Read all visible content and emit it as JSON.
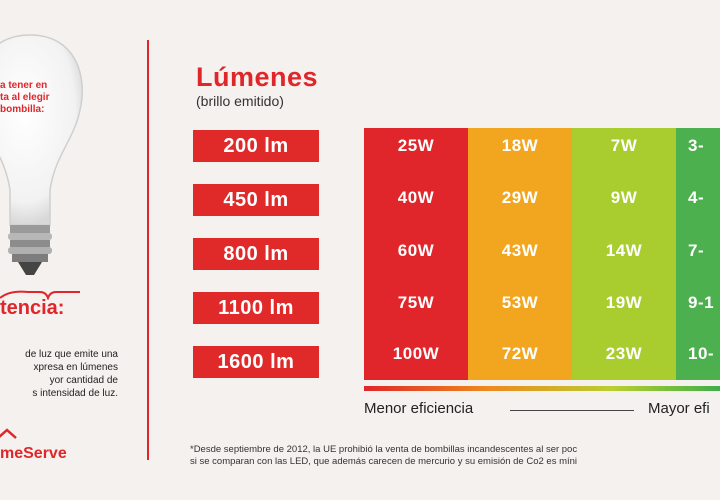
{
  "left": {
    "bulb_text": [
      "a tener en",
      "ta al elegir",
      "bombilla:"
    ],
    "heading": "tencia:",
    "description": [
      "de luz que emite una",
      "xpresa en lúmenes",
      "yor cantidad de",
      "s intensidad de luz."
    ],
    "brand": "meServe"
  },
  "lumens": {
    "title": "Lúmenes",
    "subtitle": "(brillo emitido)",
    "levels": [
      "200 lm",
      "450 lm",
      "800 lm",
      "1100 lm",
      "1600 lm"
    ]
  },
  "table": {
    "columns": [
      {
        "color": "#e0262a",
        "values": [
          "25W",
          "40W",
          "60W",
          "75W",
          "100W"
        ]
      },
      {
        "color": "#f2a61f",
        "values": [
          "18W",
          "29W",
          "43W",
          "53W",
          "72W"
        ]
      },
      {
        "color": "#a9cc2f",
        "values": [
          "7W",
          "9W",
          "14W",
          "19W",
          "23W"
        ]
      },
      {
        "color": "#4cb04f",
        "values": [
          "3-",
          "4-",
          "7-",
          "9-1",
          "10-"
        ]
      }
    ]
  },
  "efficiency": {
    "low_label": "Menor eficiencia",
    "high_label": "Mayor efi"
  },
  "footnote": [
    "*Desde septiembre de 2012, la UE prohibió la venta de bombillas incandescentes al ser poc",
    "si se comparan con las LED, que además carecen de mercurio y su emisión de Co2 es míni"
  ]
}
